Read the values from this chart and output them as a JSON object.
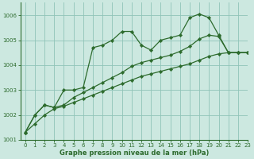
{
  "title": "Graphe pression niveau de la mer (hPa)",
  "background_color": "#cce8e0",
  "grid_color": "#90c4b8",
  "line_color": "#2d6b2d",
  "xlim": [
    -0.5,
    23
  ],
  "ylim": [
    1001,
    1006.5
  ],
  "yticks": [
    1001,
    1002,
    1003,
    1004,
    1005,
    1006
  ],
  "xticks": [
    0,
    1,
    2,
    3,
    4,
    5,
    6,
    7,
    8,
    9,
    10,
    11,
    12,
    13,
    14,
    15,
    16,
    17,
    18,
    19,
    20,
    21,
    22,
    23
  ],
  "series": [
    [
      1001.3,
      1002.0,
      1002.4,
      1002.3,
      1003.0,
      1003.0,
      1003.1,
      1004.7,
      1004.8,
      1005.0,
      1005.35,
      1005.35,
      1004.8,
      1004.6,
      1005.0,
      1005.1,
      1005.2,
      1005.9,
      1006.05,
      1005.9,
      1005.2,
      1004.5,
      1004.5,
      1004.5
    ],
    [
      1001.3,
      1002.0,
      1002.4,
      1002.3,
      1002.4,
      1002.7,
      1002.9,
      1003.1,
      1003.3,
      1003.5,
      1003.7,
      1003.95,
      1004.1,
      1004.2,
      1004.3,
      1004.4,
      1004.55,
      1004.75,
      1005.05,
      1005.2,
      1005.15,
      1004.5,
      1004.5,
      1004.5
    ],
    [
      1001.3,
      1001.65,
      1002.0,
      1002.25,
      1002.35,
      1002.5,
      1002.65,
      1002.8,
      1002.95,
      1003.1,
      1003.25,
      1003.4,
      1003.55,
      1003.65,
      1003.75,
      1003.85,
      1003.95,
      1004.05,
      1004.2,
      1004.35,
      1004.45,
      1004.5,
      1004.5,
      1004.5
    ]
  ]
}
